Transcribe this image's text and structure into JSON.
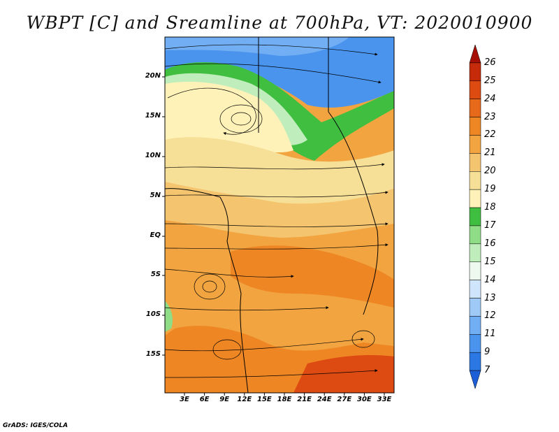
{
  "title": "WBPT [C] and Sreamline at 700hPa, VT: 2020010900",
  "lat_labels": [
    "20N",
    "15N",
    "10N",
    "5N",
    "EQ",
    "5S",
    "10S",
    "15S"
  ],
  "lon_labels": [
    "3E",
    "6E",
    "9E",
    "12E",
    "15E",
    "18E",
    "21E",
    "24E",
    "27E",
    "30E",
    "33E"
  ],
  "colorbar": {
    "labels": [
      "7",
      "9",
      "11",
      "12",
      "13",
      "14",
      "15",
      "16",
      "17",
      "18",
      "19",
      "20",
      "21",
      "22",
      "23",
      "24",
      "25",
      "26"
    ],
    "colors": [
      "#1c5fd6",
      "#2b78e4",
      "#4a94ee",
      "#71aef4",
      "#9fcaf8",
      "#cfe5fb",
      "#eef9ee",
      "#bfedbb",
      "#8fdd87",
      "#3fbe3f",
      "#fff2b8",
      "#f6df96",
      "#f5c46f",
      "#f1a43f",
      "#ee8624",
      "#e7691a",
      "#dd4a12",
      "#c52a0a",
      "#a50f05"
    ]
  },
  "credit": "GrADS: IGES/COLA"
}
